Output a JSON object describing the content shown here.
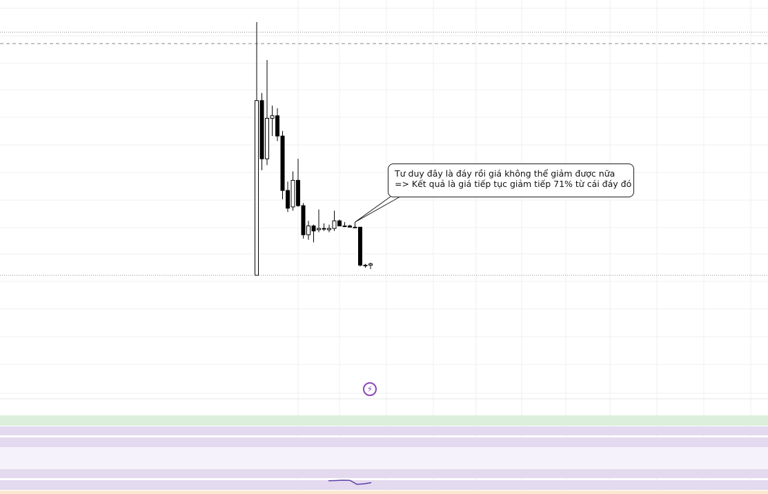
{
  "chart_data": {
    "type": "candlestick",
    "grid": true,
    "ylim": [
      0,
      100
    ],
    "reference_lines": [
      {
        "value": 96.0,
        "style": "dotted"
      },
      {
        "value": 91.5,
        "style": "dashed"
      },
      {
        "value": 0.0,
        "style": "dotted"
      }
    ],
    "candles": [
      {
        "o": 0.0,
        "h": 100.0,
        "l": 0.0,
        "c": 69.0
      },
      {
        "o": 69.0,
        "h": 72.0,
        "l": 41.5,
        "c": 46.0
      },
      {
        "o": 46.0,
        "h": 85.0,
        "l": 43.5,
        "c": 62.0
      },
      {
        "o": 62.0,
        "h": 67.0,
        "l": 55.0,
        "c": 63.0
      },
      {
        "o": 63.0,
        "h": 66.0,
        "l": 53.0,
        "c": 55.0
      },
      {
        "o": 55.0,
        "h": 57.0,
        "l": 30.0,
        "c": 33.5
      },
      {
        "o": 33.5,
        "h": 37.0,
        "l": 25.0,
        "c": 26.5
      },
      {
        "o": 27.0,
        "h": 41.0,
        "l": 25.5,
        "c": 37.5
      },
      {
        "o": 37.5,
        "h": 46.0,
        "l": 27.0,
        "c": 27.5
      },
      {
        "o": 27.5,
        "h": 28.5,
        "l": 14.5,
        "c": 16.0
      },
      {
        "o": 16.0,
        "h": 21.5,
        "l": 14.0,
        "c": 19.5
      },
      {
        "o": 19.5,
        "h": 20.0,
        "l": 13.0,
        "c": 17.5
      },
      {
        "o": 18.0,
        "h": 26.0,
        "l": 17.0,
        "c": 18.5
      },
      {
        "o": 18.5,
        "h": 20.5,
        "l": 17.5,
        "c": 18.5
      },
      {
        "o": 18.0,
        "h": 20.0,
        "l": 17.0,
        "c": 18.5
      },
      {
        "o": 18.5,
        "h": 25.5,
        "l": 17.5,
        "c": 21.5
      },
      {
        "o": 21.5,
        "h": 22.0,
        "l": 19.5,
        "c": 19.5
      },
      {
        "o": 19.5,
        "h": 21.0,
        "l": 19.0,
        "c": 19.5
      },
      {
        "o": 19.5,
        "h": 20.0,
        "l": 19.0,
        "c": 19.0
      },
      {
        "o": 19.0,
        "h": 21.0,
        "l": 19.0,
        "c": 19.0
      },
      {
        "o": 19.0,
        "h": 19.0,
        "l": 3.5,
        "c": 4.0
      },
      {
        "o": 4.0,
        "h": 4.5,
        "l": 3.0,
        "c": 4.0
      },
      {
        "o": 4.0,
        "h": 5.0,
        "l": 2.5,
        "c": 4.5
      }
    ],
    "annotation": {
      "line1": "Tư duy đây là đáy rồi giá không thể giảm được nữa",
      "line2": "=> Kết quả là giá tiếp tục giảm tiếp 71% từ cái đáy đó",
      "anchor_candle": 19
    },
    "indicator_line": [
      0.62,
      0.65,
      0.7,
      0.68,
      0.1,
      0.18,
      0.35
    ]
  },
  "colors": {
    "candle": "#000000",
    "grid": "#efefef",
    "annotation_border": "#1b1b1b",
    "event_icon": "#8b45b8",
    "indicator_line": "#5a3ea8",
    "band_green": "#dcefdc",
    "band_purple": "#e3daef",
    "band_light_purple": "#f6f2fb",
    "band_orange": "#fbe9cf"
  },
  "event_marker": {
    "icon": "lightning-bolt-icon",
    "glyph": "⚡"
  }
}
